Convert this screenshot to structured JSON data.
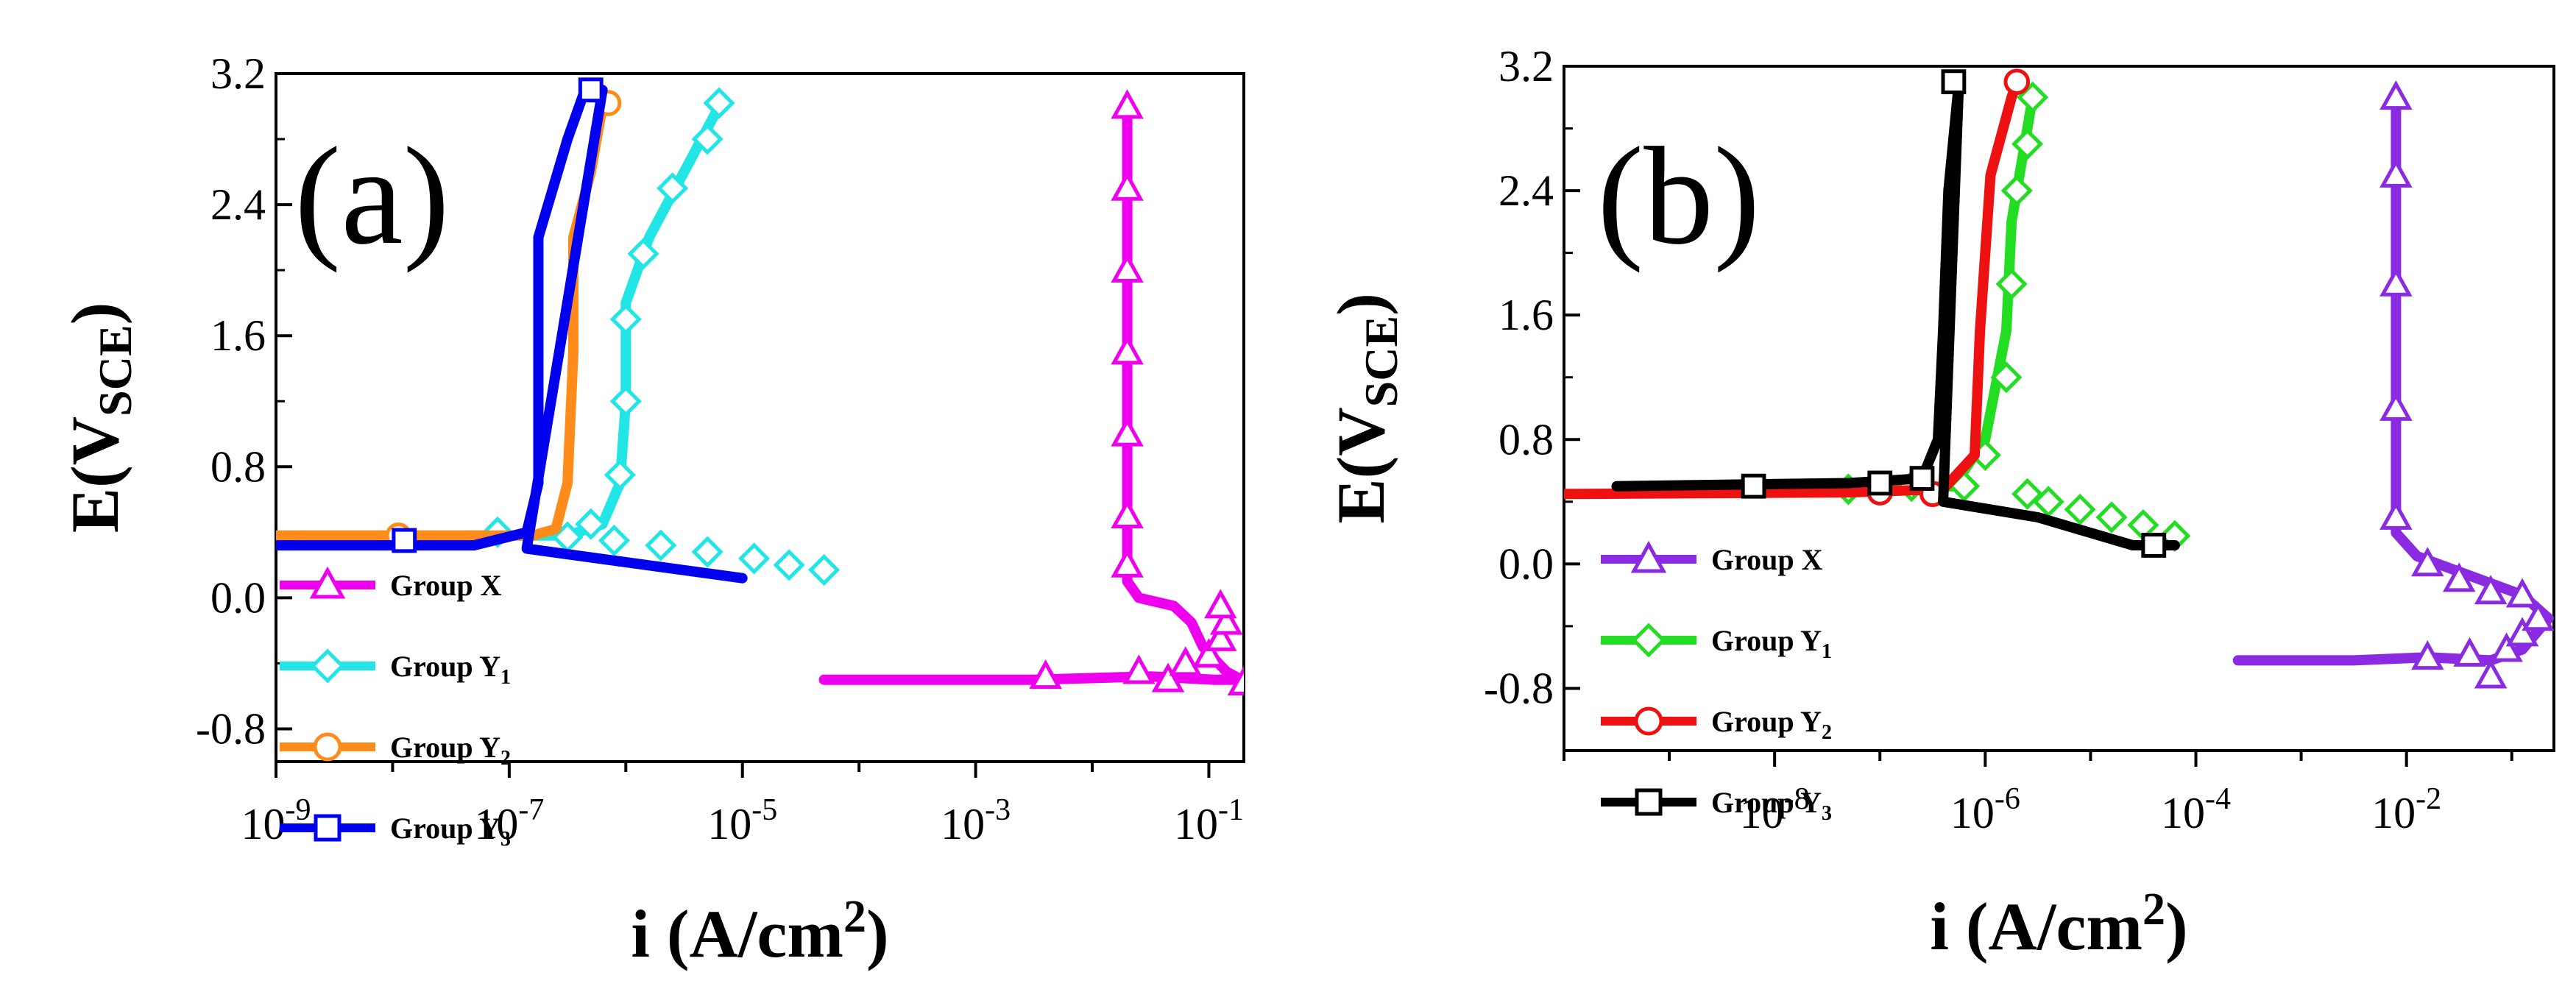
{
  "chart_data": [
    {
      "type": "line",
      "panel_label": "(a)",
      "xlabel": "i (A/cm²)",
      "xlabel_main": "i (A/cm",
      "xlabel_sup": "2",
      "xlabel_close": ")",
      "ylabel_main": "E(V",
      "ylabel_sub": "SCE",
      "ylabel_close": ")",
      "xscale": "log",
      "xlim_exp": [
        -9,
        -0.7
      ],
      "ylim": [
        -1.0,
        3.2
      ],
      "yticks": [
        -0.8,
        0.0,
        0.8,
        1.6,
        2.4,
        3.2
      ],
      "ytick_labels": [
        "-0.8",
        "0.0",
        "0.8",
        "1.6",
        "2.4",
        "3.2"
      ],
      "xticks_exp": [
        -9,
        -7,
        -5,
        -3,
        -1
      ],
      "xtick_base": "10",
      "xtick_exps": [
        "-9",
        "-7",
        "-5",
        "-3",
        "-1"
      ],
      "legend_position": "bottom-left",
      "series": [
        {
          "name": "Group X",
          "label_main": "Group X",
          "label_sub": "",
          "color": "#ee00ee",
          "marker": "triangle",
          "points": [
            [
              -4.3,
              -0.5
            ],
            [
              -2.5,
              -0.5
            ],
            [
              -1.5,
              -0.48
            ],
            [
              -0.95,
              -0.5
            ],
            [
              -0.72,
              -0.5
            ],
            [
              -0.85,
              -0.45
            ],
            [
              -1.05,
              -0.3
            ],
            [
              -1.15,
              -0.15
            ],
            [
              -1.3,
              -0.05
            ],
            [
              -1.6,
              0.0
            ],
            [
              -1.7,
              0.1
            ],
            [
              -1.7,
              0.6
            ],
            [
              -1.7,
              1.6
            ],
            [
              -1.7,
              2.4
            ],
            [
              -1.7,
              3.0
            ]
          ],
          "markers": [
            [
              -2.4,
              -0.48
            ],
            [
              -1.6,
              -0.45
            ],
            [
              -1.35,
              -0.5
            ],
            [
              -1.2,
              -0.4
            ],
            [
              -1.0,
              -0.35
            ],
            [
              -0.9,
              -0.25
            ],
            [
              -0.85,
              -0.15
            ],
            [
              -0.9,
              -0.05
            ],
            [
              -0.7,
              -0.52
            ],
            [
              -1.7,
              0.2
            ],
            [
              -1.7,
              0.5
            ],
            [
              -1.7,
              1.0
            ],
            [
              -1.7,
              1.5
            ],
            [
              -1.7,
              2.0
            ],
            [
              -1.7,
              2.5
            ],
            [
              -1.7,
              3.0
            ]
          ]
        },
        {
          "name": "Group Y1",
          "label_main": "Group Y",
          "label_sub": "1",
          "color": "#22e5e5",
          "marker": "diamond",
          "points": [
            [
              -8.8,
              0.38
            ],
            [
              -7.3,
              0.38
            ],
            [
              -6.5,
              0.38
            ],
            [
              -6.2,
              0.45
            ],
            [
              -6.05,
              0.7
            ],
            [
              -6.0,
              1.2
            ],
            [
              -6.0,
              1.8
            ],
            [
              -5.8,
              2.2
            ],
            [
              -5.5,
              2.6
            ],
            [
              -5.2,
              3.0
            ]
          ],
          "markers": [
            [
              -7.1,
              0.4
            ],
            [
              -6.5,
              0.37
            ],
            [
              -6.1,
              0.35
            ],
            [
              -5.7,
              0.32
            ],
            [
              -5.3,
              0.28
            ],
            [
              -4.9,
              0.24
            ],
            [
              -4.6,
              0.2
            ],
            [
              -4.3,
              0.17
            ],
            [
              -6.3,
              0.45
            ],
            [
              -6.05,
              0.75
            ],
            [
              -6.0,
              1.2
            ],
            [
              -6.0,
              1.7
            ],
            [
              -5.85,
              2.1
            ],
            [
              -5.6,
              2.5
            ],
            [
              -5.3,
              2.8
            ],
            [
              -5.2,
              3.02
            ]
          ]
        },
        {
          "name": "Group Y2",
          "label_main": "Group Y",
          "label_sub": "2",
          "color": "#ff8c1a",
          "marker": "circle",
          "points": [
            [
              -9.0,
              0.38
            ],
            [
              -7.3,
              0.38
            ],
            [
              -6.8,
              0.38
            ],
            [
              -6.6,
              0.42
            ],
            [
              -6.5,
              0.7
            ],
            [
              -6.45,
              1.5
            ],
            [
              -6.45,
              2.2
            ],
            [
              -6.3,
              2.6
            ],
            [
              -6.2,
              3.0
            ],
            [
              -6.15,
              3.02
            ]
          ],
          "markers": [
            [
              -7.95,
              0.38
            ],
            [
              -6.15,
              3.02
            ]
          ]
        },
        {
          "name": "Group Y3",
          "label_main": "Group Y",
          "label_sub": "3",
          "color": "#0000ee",
          "marker": "square",
          "points": [
            [
              -9.0,
              0.32
            ],
            [
              -7.3,
              0.32
            ],
            [
              -6.85,
              0.4
            ],
            [
              -6.75,
              0.7
            ],
            [
              -6.75,
              1.5
            ],
            [
              -6.75,
              2.2
            ],
            [
              -6.5,
              2.8
            ],
            [
              -6.35,
              3.1
            ],
            [
              -6.2,
              3.1
            ],
            [
              -6.85,
              0.3
            ],
            [
              -5.0,
              0.12
            ]
          ],
          "markers": [
            [
              -7.9,
              0.35
            ],
            [
              -6.3,
              3.1
            ]
          ]
        }
      ]
    },
    {
      "type": "line",
      "panel_label": "(b)",
      "xlabel": "i (A/cm²)",
      "xlabel_main": "i (A/cm",
      "xlabel_sup": "2",
      "xlabel_close": ")",
      "ylabel_main": "E(V",
      "ylabel_sub": "SCE",
      "ylabel_close": ")",
      "xscale": "log",
      "xlim_exp": [
        -10,
        -0.6
      ],
      "ylim": [
        -1.2,
        3.2
      ],
      "yticks": [
        -0.8,
        0.0,
        0.8,
        1.6,
        2.4,
        3.2
      ],
      "ytick_labels": [
        "-0.8",
        "0.0",
        "0.8",
        "1.6",
        "2.4",
        "3.2"
      ],
      "xticks_exp": [
        -8,
        -6,
        -4,
        -2
      ],
      "xtick_base": "10",
      "xtick_exps": [
        "-8",
        "-6",
        "-4",
        "-2"
      ],
      "legend_position": "bottom-left",
      "series": [
        {
          "name": "Group X",
          "label_main": "Group X",
          "label_sub": "",
          "color": "#8a2be2",
          "marker": "triangle",
          "points": [
            [
              -3.6,
              -0.62
            ],
            [
              -2.5,
              -0.62
            ],
            [
              -1.8,
              -0.6
            ],
            [
              -1.2,
              -0.62
            ],
            [
              -0.9,
              -0.55
            ],
            [
              -0.65,
              -0.35
            ],
            [
              -0.9,
              -0.2
            ],
            [
              -1.3,
              -0.1
            ],
            [
              -1.9,
              0.05
            ],
            [
              -2.1,
              0.2
            ],
            [
              -2.1,
              1.0
            ],
            [
              -2.1,
              2.0
            ],
            [
              -2.1,
              3.0
            ]
          ],
          "markers": [
            [
              -1.8,
              -0.6
            ],
            [
              -1.4,
              -0.58
            ],
            [
              -1.2,
              -0.72
            ],
            [
              -1.05,
              -0.55
            ],
            [
              -0.9,
              -0.45
            ],
            [
              -0.75,
              -0.35
            ],
            [
              -1.8,
              0.0
            ],
            [
              -1.5,
              -0.1
            ],
            [
              -1.2,
              -0.18
            ],
            [
              -0.9,
              -0.2
            ],
            [
              -2.1,
              0.3
            ],
            [
              -2.1,
              1.0
            ],
            [
              -2.1,
              1.8
            ],
            [
              -2.1,
              2.5
            ],
            [
              -2.1,
              3.0
            ]
          ]
        },
        {
          "name": "Group Y1",
          "label_main": "Group Y",
          "label_sub": "1",
          "color": "#22dd22",
          "marker": "diamond",
          "points": [
            [
              -9.5,
              0.48
            ],
            [
              -7.2,
              0.48
            ],
            [
              -6.3,
              0.5
            ],
            [
              -6.0,
              0.8
            ],
            [
              -5.8,
              1.5
            ],
            [
              -5.75,
              2.2
            ],
            [
              -5.6,
              2.8
            ],
            [
              -5.55,
              3.0
            ]
          ],
          "markers": [
            [
              -7.3,
              0.48
            ],
            [
              -6.7,
              0.5
            ],
            [
              -6.2,
              0.5
            ],
            [
              -5.6,
              0.45
            ],
            [
              -5.4,
              0.4
            ],
            [
              -5.1,
              0.35
            ],
            [
              -4.8,
              0.3
            ],
            [
              -4.5,
              0.25
            ],
            [
              -4.2,
              0.18
            ],
            [
              -6.0,
              0.7
            ],
            [
              -5.8,
              1.2
            ],
            [
              -5.75,
              1.8
            ],
            [
              -5.7,
              2.4
            ],
            [
              -5.6,
              2.7
            ],
            [
              -5.55,
              3.0
            ]
          ]
        },
        {
          "name": "Group Y2",
          "label_main": "Group Y",
          "label_sub": "2",
          "color": "#ee1111",
          "marker": "circle",
          "points": [
            [
              -10.0,
              0.45
            ],
            [
              -7.3,
              0.46
            ],
            [
              -6.4,
              0.48
            ],
            [
              -6.1,
              0.7
            ],
            [
              -6.05,
              1.5
            ],
            [
              -5.95,
              2.5
            ],
            [
              -5.75,
              3.0
            ],
            [
              -5.7,
              3.1
            ]
          ],
          "markers": [
            [
              -7.0,
              0.46
            ],
            [
              -6.5,
              0.45
            ],
            [
              -5.7,
              3.1
            ]
          ]
        },
        {
          "name": "Group Y3",
          "label_main": "Group Y",
          "label_sub": "3",
          "color": "#000000",
          "marker": "square",
          "points": [
            [
              -9.5,
              0.5
            ],
            [
              -7.3,
              0.52
            ],
            [
              -6.6,
              0.55
            ],
            [
              -6.45,
              0.8
            ],
            [
              -6.4,
              1.5
            ],
            [
              -6.35,
              2.4
            ],
            [
              -6.25,
              3.1
            ],
            [
              -6.4,
              0.4
            ],
            [
              -5.5,
              0.3
            ],
            [
              -4.6,
              0.12
            ],
            [
              -4.2,
              0.12
            ]
          ],
          "markers": [
            [
              -8.2,
              0.5
            ],
            [
              -7.0,
              0.52
            ],
            [
              -6.6,
              0.55
            ],
            [
              -6.3,
              3.1
            ],
            [
              -4.4,
              0.12
            ]
          ]
        }
      ]
    }
  ]
}
